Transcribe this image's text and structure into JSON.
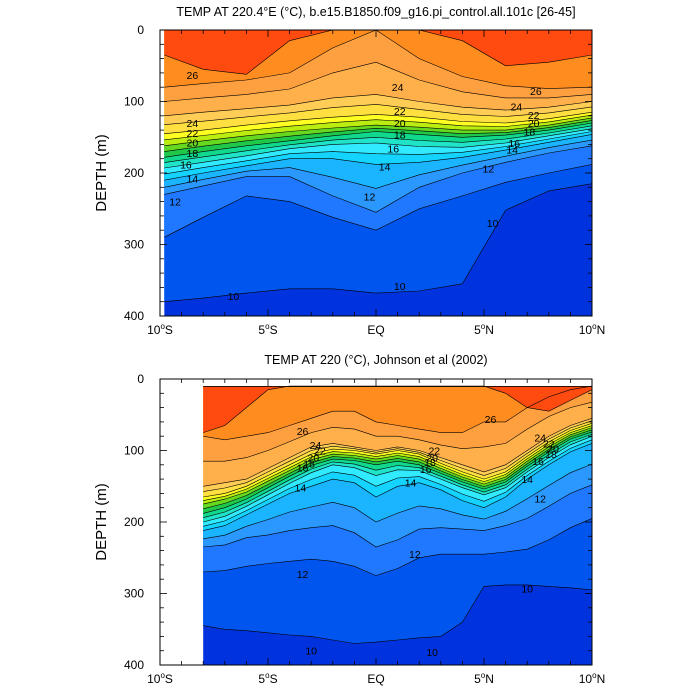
{
  "chart_data": [
    {
      "type": "heatmap",
      "title": "TEMP AT 220.4°E (°C), b.e15.B1850.f09_g16.pi_control.all.101c [26-45]",
      "ylabel": "DEPTH (m)",
      "xlabel": "",
      "xlim": [
        -10,
        10
      ],
      "ylim": [
        400,
        0
      ],
      "x_ticks": [
        {
          "value": -10,
          "label": "10°S"
        },
        {
          "value": -5,
          "label": "5°S"
        },
        {
          "value": 0,
          "label": "EQ"
        },
        {
          "value": 5,
          "label": "5°N"
        },
        {
          "value": 10,
          "label": "10°N"
        }
      ],
      "y_ticks": [
        0,
        100,
        200,
        300,
        400
      ],
      "data_x_start": -9.8,
      "contour_levels": [
        10,
        11,
        12,
        13,
        14,
        15,
        16,
        17,
        18,
        19,
        20,
        21,
        22,
        23,
        24,
        25,
        26,
        27
      ],
      "isotherm_depths": {
        "lats": [
          -10,
          -8,
          -6,
          -4,
          -2,
          0,
          2,
          4,
          6,
          8,
          10
        ],
        "27": [
          35,
          55,
          62,
          15,
          0,
          0,
          0,
          15,
          50,
          45,
          35
        ],
        "26": [
          80,
          75,
          70,
          60,
          25,
          0,
          40,
          65,
          78,
          82,
          80
        ],
        "24": [
          120,
          115,
          110,
          105,
          95,
          90,
          100,
          108,
          112,
          108,
          100
        ],
        "22": [
          145,
          140,
          133,
          127,
          122,
          118,
          122,
          128,
          130,
          124,
          115
        ],
        "20": [
          162,
          155,
          148,
          142,
          137,
          133,
          136,
          140,
          140,
          133,
          123
        ],
        "18": [
          178,
          170,
          162,
          155,
          148,
          142,
          146,
          150,
          147,
          140,
          130
        ],
        "16": [
          193,
          185,
          176,
          166,
          160,
          158,
          163,
          164,
          158,
          148,
          138
        ],
        "14": [
          210,
          200,
          190,
          180,
          180,
          188,
          185,
          178,
          168,
          157,
          146
        ],
        "12": [
          230,
          218,
          205,
          205,
          232,
          255,
          220,
          200,
          185,
          172,
          162
        ],
        "11": [
          290,
          262,
          232,
          240,
          262,
          280,
          250,
          232,
          213,
          200,
          188
        ],
        "10": [
          380,
          375,
          368,
          362,
          362,
          368,
          365,
          355,
          252,
          225,
          215
        ]
      },
      "contour_labels": [
        {
          "text": "26",
          "x": -8.5,
          "y": 63
        },
        {
          "text": "24",
          "x": -8.5,
          "y": 130
        },
        {
          "text": "22",
          "x": -8.5,
          "y": 144
        },
        {
          "text": "20",
          "x": -8.5,
          "y": 157
        },
        {
          "text": "18",
          "x": -8.5,
          "y": 172
        },
        {
          "text": "16",
          "x": -8.8,
          "y": 188
        },
        {
          "text": "14",
          "x": -8.5,
          "y": 208
        },
        {
          "text": "12",
          "x": -9.3,
          "y": 240
        },
        {
          "text": "10",
          "x": -6.6,
          "y": 372
        },
        {
          "text": "24",
          "x": 1.0,
          "y": 80
        },
        {
          "text": "22",
          "x": 1.1,
          "y": 113
        },
        {
          "text": "20",
          "x": 1.1,
          "y": 130
        },
        {
          "text": "18",
          "x": 1.1,
          "y": 146
        },
        {
          "text": "16",
          "x": 0.8,
          "y": 166
        },
        {
          "text": "14",
          "x": 0.4,
          "y": 191
        },
        {
          "text": "12",
          "x": -0.3,
          "y": 233
        },
        {
          "text": "10",
          "x": 1.1,
          "y": 358
        },
        {
          "text": "26",
          "x": 7.4,
          "y": 85
        },
        {
          "text": "24",
          "x": 6.5,
          "y": 107
        },
        {
          "text": "22",
          "x": 7.3,
          "y": 119
        },
        {
          "text": "20",
          "x": 7.3,
          "y": 130
        },
        {
          "text": "18",
          "x": 7.1,
          "y": 142
        },
        {
          "text": "16",
          "x": 6.4,
          "y": 158
        },
        {
          "text": "14",
          "x": 6.3,
          "y": 167
        },
        {
          "text": "12",
          "x": 5.2,
          "y": 194
        },
        {
          "text": "10",
          "x": 5.4,
          "y": 270
        }
      ]
    },
    {
      "type": "heatmap",
      "title": "TEMP AT 220 (°C), Johnson et al (2002)",
      "ylabel": "DEPTH (m)",
      "xlabel": "",
      "xlim": [
        -10,
        10
      ],
      "ylim": [
        400,
        0
      ],
      "x_ticks": [
        {
          "value": -10,
          "label": "10°S"
        },
        {
          "value": -5,
          "label": "5°S"
        },
        {
          "value": 0,
          "label": "EQ"
        },
        {
          "value": 5,
          "label": "5°N"
        },
        {
          "value": 10,
          "label": "10°N"
        }
      ],
      "y_ticks": [
        0,
        100,
        200,
        300,
        400
      ],
      "data_x_start": -8,
      "data_y_top": 10,
      "contour_levels": [
        10,
        11,
        12,
        13,
        14,
        15,
        16,
        17,
        18,
        19,
        20,
        21,
        22,
        23,
        24,
        25,
        26,
        27
      ],
      "isotherm_depths": {
        "lats": [
          -8,
          -7,
          -6,
          -5,
          -4,
          -3,
          -2,
          -1,
          0,
          1,
          2,
          3,
          4,
          5,
          6,
          7,
          8,
          9,
          10
        ],
        "27": [
          75,
          65,
          40,
          15,
          0,
          0,
          0,
          0,
          0,
          0,
          0,
          0,
          0,
          0,
          20,
          40,
          45,
          30,
          15
        ],
        "26": [
          80,
          85,
          80,
          75,
          65,
          55,
          45,
          45,
          60,
          65,
          70,
          75,
          75,
          60,
          60,
          40,
          25,
          15,
          10
        ],
        "24": [
          150,
          145,
          140,
          125,
          110,
          95,
          90,
          95,
          100,
          95,
          100,
          110,
          120,
          130,
          120,
          100,
          80,
          65,
          55
        ],
        "22": [
          165,
          160,
          150,
          135,
          120,
          105,
          98,
          100,
          105,
          100,
          105,
          118,
          130,
          140,
          130,
          108,
          88,
          72,
          62
        ],
        "20": [
          175,
          168,
          158,
          143,
          128,
          113,
          105,
          107,
          112,
          107,
          112,
          125,
          137,
          147,
          137,
          115,
          95,
          78,
          68
        ],
        "18": [
          188,
          180,
          168,
          152,
          136,
          121,
          112,
          114,
          120,
          115,
          120,
          132,
          144,
          154,
          144,
          122,
          102,
          84,
          74
        ],
        "16": [
          200,
          192,
          178,
          162,
          146,
          131,
          120,
          124,
          135,
          127,
          128,
          140,
          152,
          162,
          152,
          130,
          110,
          92,
          80
        ],
        "14": [
          212,
          205,
          190,
          175,
          160,
          150,
          140,
          145,
          165,
          150,
          145,
          155,
          170,
          180,
          165,
          140,
          120,
          102,
          90
        ],
        "12": [
          235,
          232,
          222,
          218,
          212,
          208,
          205,
          215,
          235,
          225,
          210,
          208,
          210,
          212,
          205,
          195,
          178,
          160,
          148
        ],
        "11": [
          270,
          268,
          262,
          258,
          255,
          252,
          255,
          262,
          275,
          265,
          250,
          245,
          245,
          245,
          242,
          238,
          225,
          208,
          195
        ],
        "10": [
          345,
          350,
          352,
          355,
          358,
          360,
          365,
          370,
          368,
          365,
          362,
          360,
          340,
          290,
          288,
          288,
          290,
          292,
          295
        ]
      },
      "contour_labels": [
        {
          "text": "26",
          "x": -3.4,
          "y": 73
        },
        {
          "text": "24",
          "x": -2.8,
          "y": 92
        },
        {
          "text": "22",
          "x": -2.6,
          "y": 100
        },
        {
          "text": "20",
          "x": -2.9,
          "y": 110
        },
        {
          "text": "18",
          "x": -3.1,
          "y": 118
        },
        {
          "text": "16",
          "x": -3.4,
          "y": 124
        },
        {
          "text": "14",
          "x": -3.5,
          "y": 152
        },
        {
          "text": "12",
          "x": -3.4,
          "y": 273
        },
        {
          "text": "10",
          "x": -3.0,
          "y": 380
        },
        {
          "text": "26",
          "x": 5.3,
          "y": 56
        },
        {
          "text": "22",
          "x": 2.7,
          "y": 100
        },
        {
          "text": "20",
          "x": 2.6,
          "y": 110
        },
        {
          "text": "18",
          "x": 2.5,
          "y": 116
        },
        {
          "text": "16",
          "x": 2.3,
          "y": 126
        },
        {
          "text": "14",
          "x": 1.6,
          "y": 145
        },
        {
          "text": "12",
          "x": 1.8,
          "y": 245
        },
        {
          "text": "10",
          "x": 2.6,
          "y": 382
        },
        {
          "text": "24",
          "x": 7.6,
          "y": 82
        },
        {
          "text": "22",
          "x": 8.0,
          "y": 90
        },
        {
          "text": "20",
          "x": 8.2,
          "y": 97
        },
        {
          "text": "18",
          "x": 8.1,
          "y": 105
        },
        {
          "text": "16",
          "x": 7.5,
          "y": 115
        },
        {
          "text": "14",
          "x": 7.0,
          "y": 140
        },
        {
          "text": "12",
          "x": 7.6,
          "y": 167
        },
        {
          "text": "10",
          "x": 7.0,
          "y": 293
        }
      ]
    }
  ],
  "colorbar": {
    "colors": [
      "#0033dd",
      "#0055ee",
      "#1f78ff",
      "#2b98ff",
      "#1ab4ff",
      "#14d4ff",
      "#32eaff",
      "#20e4c8",
      "#10d88c",
      "#20c84a",
      "#66d820",
      "#bbee10",
      "#ffff22",
      "#ffe040",
      "#ffcc55",
      "#ffb04a",
      "#ffa040",
      "#ff8c1e",
      "#ff4a10"
    ]
  }
}
